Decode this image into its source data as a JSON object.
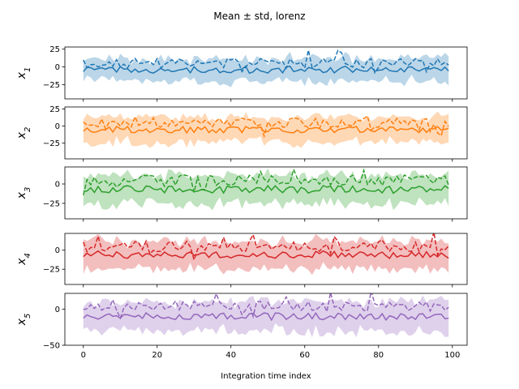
{
  "chart_data": {
    "type": "line",
    "title": "Mean ± std, lorenz",
    "xlabel": "Integration time index",
    "xlim": [
      -5,
      104
    ],
    "xticks": [
      0,
      20,
      40,
      60,
      80,
      100
    ],
    "n_points": 100,
    "panels": [
      {
        "ylabel_base": "x",
        "ylabel_sub": "1",
        "ylim": [
          -45,
          28
        ],
        "yticks": [
          -25,
          0,
          25
        ],
        "color": "#1f77b4",
        "mean_level": -4,
        "mean_amp": 5,
        "band_halfwidth": 16,
        "band_amp": 5,
        "dashed_level": 5,
        "dashed_amp": 7,
        "seed": 11,
        "series": [
          {
            "name": "",
            "style": "mean"
          },
          {
            "name": "",
            "style": "std-band"
          },
          {
            "name": "",
            "style": "dashed"
          }
        ]
      },
      {
        "ylabel_base": "x",
        "ylabel_sub": "2",
        "ylim": [
          -48,
          28
        ],
        "yticks": [
          -25,
          0,
          25
        ],
        "color": "#ff7f0e",
        "mean_level": -5,
        "mean_amp": 5,
        "band_halfwidth": 18,
        "band_amp": 5,
        "dashed_level": 5,
        "dashed_amp": 7,
        "seed": 23,
        "series": [
          {
            "name": "",
            "style": "mean"
          },
          {
            "name": "",
            "style": "std-band"
          },
          {
            "name": "",
            "style": "dashed"
          }
        ]
      },
      {
        "ylabel_base": "x",
        "ylabel_sub": "3",
        "ylim": [
          -45,
          22
        ],
        "yticks": [
          -25,
          0
        ],
        "color": "#2ca02c",
        "mean_level": -7,
        "mean_amp": 5,
        "band_halfwidth": 18,
        "band_amp": 5,
        "dashed_level": 5,
        "dashed_amp": 7,
        "seed": 37,
        "series": [
          {
            "name": "",
            "style": "mean"
          },
          {
            "name": "",
            "style": "std-band"
          },
          {
            "name": "",
            "style": "dashed"
          }
        ]
      },
      {
        "ylabel_base": "x",
        "ylabel_sub": "4",
        "ylim": [
          -45,
          22
        ],
        "yticks": [
          -25,
          0
        ],
        "color": "#d62728",
        "mean_level": -6,
        "mean_amp": 5,
        "band_halfwidth": 18,
        "band_amp": 5,
        "dashed_level": 5,
        "dashed_amp": 7,
        "seed": 41,
        "series": [
          {
            "name": "",
            "style": "mean"
          },
          {
            "name": "",
            "style": "std-band"
          },
          {
            "name": "",
            "style": "dashed"
          }
        ]
      },
      {
        "ylabel_base": "x",
        "ylabel_sub": "5",
        "ylim": [
          -50,
          22
        ],
        "yticks": [
          -50,
          0
        ],
        "color": "#9467bd",
        "mean_level": -10,
        "mean_amp": 5,
        "band_halfwidth": 20,
        "band_amp": 6,
        "dashed_level": 5,
        "dashed_amp": 7,
        "seed": 53,
        "series": [
          {
            "name": "",
            "style": "mean"
          },
          {
            "name": "",
            "style": "std-band"
          },
          {
            "name": "",
            "style": "dashed"
          }
        ]
      }
    ]
  }
}
